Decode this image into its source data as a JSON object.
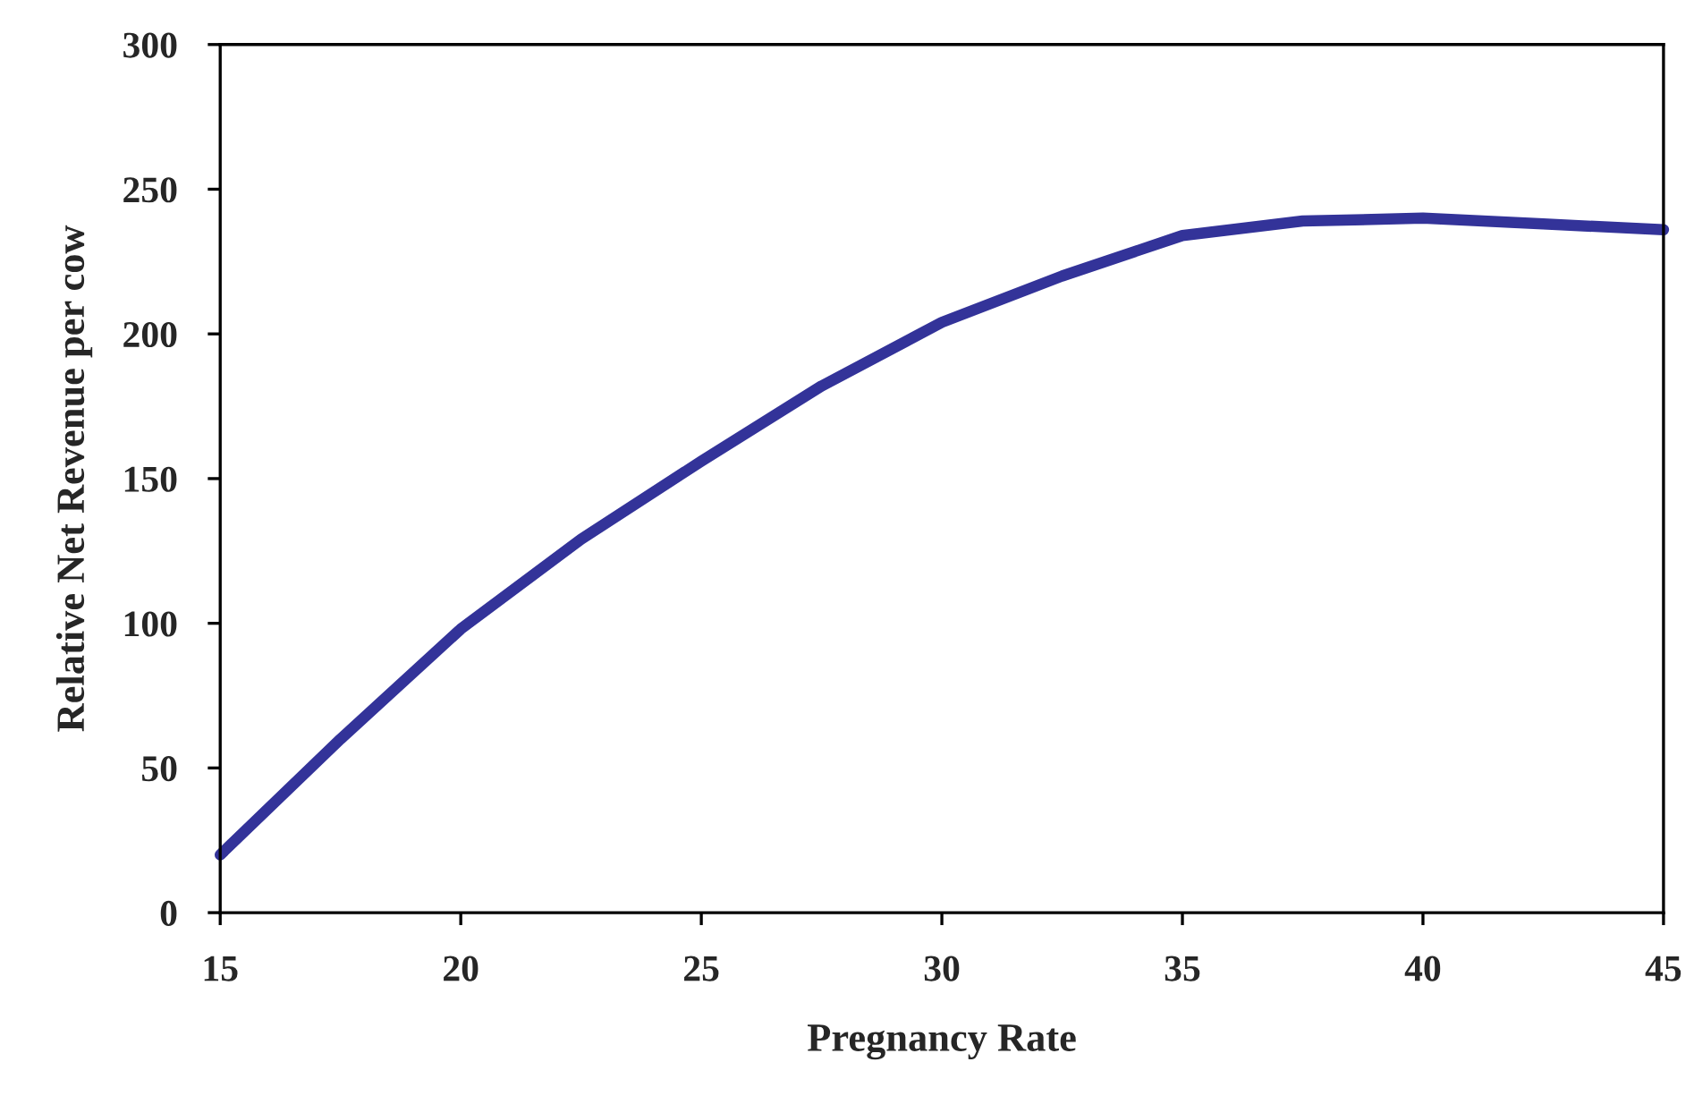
{
  "chart_data": {
    "type": "line",
    "xlabel": "Pregnancy Rate",
    "ylabel": "Relative Net Revenue per cow",
    "x": [
      15,
      17.5,
      20,
      22.5,
      25,
      27.5,
      30,
      32.5,
      35,
      37.5,
      40,
      42.5,
      45
    ],
    "series": [
      {
        "color": "#333399",
        "values": [
          20,
          60,
          98,
          129,
          156,
          182,
          204,
          220,
          234,
          239,
          240,
          238,
          236
        ]
      }
    ],
    "xlim": [
      15,
      45
    ],
    "xticks": [
      15,
      20,
      25,
      30,
      35,
      40,
      45
    ],
    "ylim": [
      0,
      300
    ],
    "yticks": [
      0,
      50,
      100,
      150,
      200,
      250,
      300
    ],
    "grid": false,
    "legend": false,
    "marker": "none",
    "line_style": "solid"
  }
}
